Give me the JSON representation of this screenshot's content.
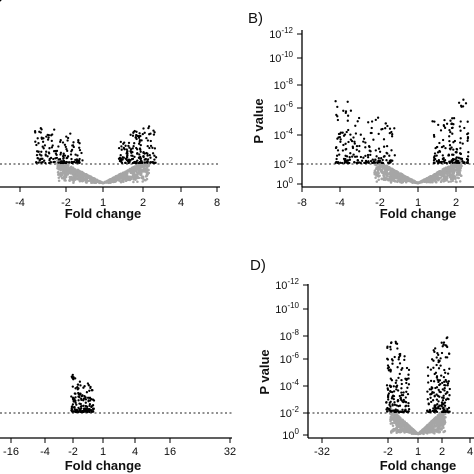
{
  "chart_data": [
    {
      "panel": "A",
      "panel_label": "",
      "type": "scatter",
      "xlabel": "Fold change",
      "ylabel": "",
      "x_scale": "log2",
      "xlim": [
        0.0625,
        8
      ],
      "x_ticks": [
        "-4",
        "-2",
        "1",
        "2",
        "4",
        "8"
      ],
      "y_scale": "log10",
      "y_ticks": [],
      "threshold_p": 0.01,
      "series": [
        {
          "significant": false,
          "color": "#a6a6a6",
          "shape": "V-shaped cloud centered at fold change 1, mostly below threshold"
        },
        {
          "significant": true,
          "color": "#000000",
          "extent_fold_change": [
            -3,
            2
          ],
          "max_neg_log10_p": 3.3
        }
      ]
    },
    {
      "panel": "B",
      "panel_label": "B)",
      "type": "scatter",
      "xlabel": "Fold change",
      "ylabel": "P value",
      "x_scale": "log2",
      "xlim": [
        0.125,
        2.6
      ],
      "x_ticks": [
        "-8",
        "-4",
        "-2",
        "1",
        "2"
      ],
      "y_scale": "log10",
      "ylim": [
        1,
        1e-12
      ],
      "y_ticks": [
        "10^0",
        "10^-2",
        "10^-4",
        "10^-6",
        "10^-8",
        "10^-10",
        "10^-12"
      ],
      "threshold_p": 0.01,
      "series": [
        {
          "significant": false,
          "color": "#a6a6a6",
          "shape": "V-shaped cloud centered at fold change 1"
        },
        {
          "significant": true,
          "color": "#000000",
          "extent_fold_change": [
            -4,
            2.5
          ],
          "max_neg_log10_p": 5.4
        }
      ]
    },
    {
      "panel": "C",
      "panel_label": "",
      "type": "scatter",
      "xlabel": "Fold change",
      "ylabel": "",
      "x_scale": "log2",
      "xlim": [
        0.04,
        32
      ],
      "x_ticks": [
        "-16",
        "-4",
        "-2",
        "1",
        "4",
        "16",
        "32"
      ],
      "y_scale": "log10",
      "y_ticks": [],
      "threshold_p": 0.01,
      "series": [
        {
          "significant": false,
          "color": "#a6a6a6",
          "shape": "narrow V-shaped cloud centered at fold change 1"
        },
        {
          "significant": true,
          "color": "#000000",
          "extent_fold_change": [
            -2,
            2
          ],
          "max_neg_log10_p": 3.2
        }
      ]
    },
    {
      "panel": "D",
      "panel_label": "D)",
      "type": "scatter",
      "xlabel": "Fold change",
      "ylabel": "P value",
      "x_scale": "log2",
      "xlim": [
        0.03125,
        4
      ],
      "x_ticks": [
        "-32",
        "-2",
        "1",
        "2",
        "4"
      ],
      "y_scale": "log10",
      "ylim": [
        1,
        1e-12
      ],
      "y_ticks": [
        "10^0",
        "10^-2",
        "10^-4",
        "10^-6",
        "10^-8",
        "10^-10",
        "10^-12"
      ],
      "threshold_p": 0.01,
      "series": [
        {
          "significant": false,
          "color": "#a6a6a6",
          "shape": "V-shaped cloud centered at fold change 1"
        },
        {
          "significant": true,
          "color": "#000000",
          "extent_fold_change": [
            -2,
            2.5
          ],
          "max_neg_log10_p": 6.8
        }
      ]
    }
  ]
}
